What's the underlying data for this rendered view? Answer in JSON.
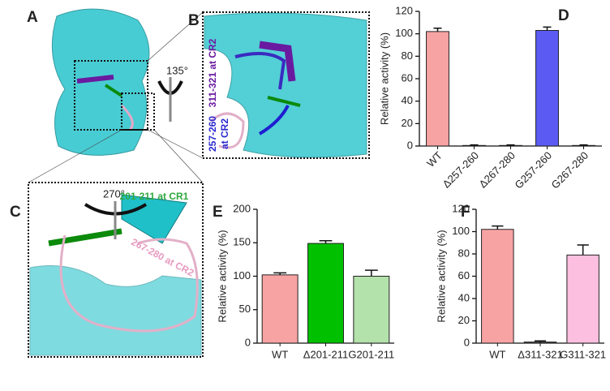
{
  "structure": {
    "panel_a": "A",
    "panel_b": "B",
    "panel_c": "C",
    "rotation_b": "135°",
    "rotation_c": "270°",
    "label_311": "311-321 at CR2",
    "label_257_line1": "257-260",
    "label_257_line2": "at CR2",
    "label_201": "201-211 at CR1",
    "label_267": "267-280 at CR2"
  },
  "chart_data": [
    {
      "type": "bar",
      "panel_label": "D",
      "y_label": "Relative activity (%)",
      "categories": [
        "WT",
        "Δ257-260",
        "Δ267-280",
        "G257-260",
        "G267-280"
      ],
      "values": [
        102,
        0.5,
        0.5,
        103,
        0.5
      ],
      "errors": [
        3,
        0.5,
        0.5,
        3,
        0.5
      ],
      "colors": [
        "#f8a3a3",
        "#444444",
        "#444444",
        "#5b5bf4",
        "#444444"
      ],
      "ylim": [
        0,
        120
      ],
      "yticks": [
        0,
        20,
        40,
        60,
        80,
        100,
        120
      ]
    },
    {
      "type": "bar",
      "panel_label": "E",
      "y_label": "Relative activity (%)",
      "categories": [
        "WT",
        "Δ201-211",
        "G201-211"
      ],
      "values": [
        102,
        149,
        100
      ],
      "errors": [
        3,
        4,
        9
      ],
      "colors": [
        "#f8a3a3",
        "#00c000",
        "#b3e2ab"
      ],
      "ylim": [
        0,
        200
      ],
      "yticks": [
        0,
        50,
        100,
        150,
        200
      ]
    },
    {
      "type": "bar",
      "panel_label": "F",
      "y_label": "Relative activity (%)",
      "categories": [
        "WT",
        "Δ311-321",
        "G311-321"
      ],
      "values": [
        102,
        1,
        79
      ],
      "errors": [
        3,
        1,
        9
      ],
      "colors": [
        "#f8a3a3",
        "#444444",
        "#fdbfe0"
      ],
      "ylim": [
        0,
        120
      ],
      "yticks": [
        0,
        20,
        40,
        60,
        80,
        100,
        120
      ]
    }
  ]
}
